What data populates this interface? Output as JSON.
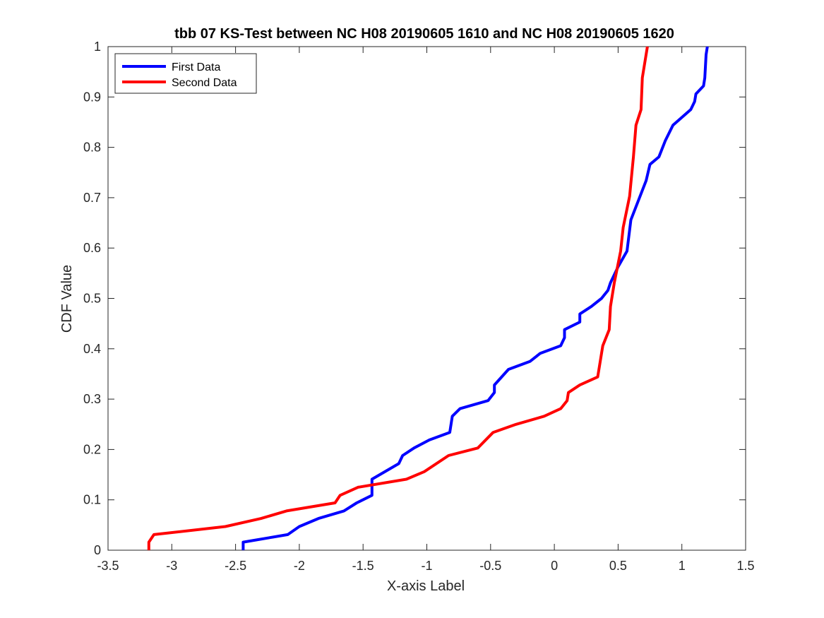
{
  "chart_data": {
    "type": "line",
    "title": "tbb 07 KS-Test between NC H08 20190605 1610 and NC H08 20190605 1620",
    "xlabel": "X-axis Label",
    "ylabel": "CDF Value",
    "xlim": [
      -3.5,
      1.5
    ],
    "ylim": [
      0,
      1
    ],
    "xticks": [
      -3.5,
      -3,
      -2.5,
      -2,
      -1.5,
      -1,
      -0.5,
      0,
      0.5,
      1,
      1.5
    ],
    "yticks": [
      0,
      0.1,
      0.2,
      0.3,
      0.4,
      0.5,
      0.6,
      0.7,
      0.8,
      0.9,
      1
    ],
    "xtick_labels": [
      "-3.5",
      "-3",
      "-2.5",
      "-2",
      "-1.5",
      "-1",
      "-0.5",
      "0",
      "0.5",
      "1",
      "1.5"
    ],
    "ytick_labels": [
      "0",
      "0.1",
      "0.2",
      "0.3",
      "0.4",
      "0.5",
      "0.6",
      "0.7",
      "0.8",
      "0.9",
      "1"
    ],
    "grid": false,
    "legend_position": "top-left",
    "series": [
      {
        "name": "First Data",
        "color": "#0000ff",
        "points": [
          [
            -2.44,
            0
          ],
          [
            -2.44,
            0.016
          ],
          [
            -2.09,
            0.031
          ],
          [
            -2.0,
            0.047
          ],
          [
            -1.85,
            0.063
          ],
          [
            -1.65,
            0.078
          ],
          [
            -1.55,
            0.094
          ],
          [
            -1.43,
            0.109
          ],
          [
            -1.43,
            0.141
          ],
          [
            -1.22,
            0.172
          ],
          [
            -1.19,
            0.188
          ],
          [
            -1.1,
            0.203
          ],
          [
            -0.98,
            0.219
          ],
          [
            -0.82,
            0.234
          ],
          [
            -0.8,
            0.266
          ],
          [
            -0.74,
            0.281
          ],
          [
            -0.52,
            0.297
          ],
          [
            -0.47,
            0.313
          ],
          [
            -0.47,
            0.328
          ],
          [
            -0.36,
            0.359
          ],
          [
            -0.19,
            0.375
          ],
          [
            -0.11,
            0.391
          ],
          [
            0.05,
            0.406
          ],
          [
            0.08,
            0.422
          ],
          [
            0.08,
            0.438
          ],
          [
            0.2,
            0.453
          ],
          [
            0.2,
            0.469
          ],
          [
            0.29,
            0.484
          ],
          [
            0.37,
            0.5
          ],
          [
            0.42,
            0.516
          ],
          [
            0.44,
            0.531
          ],
          [
            0.5,
            0.563
          ],
          [
            0.57,
            0.594
          ],
          [
            0.6,
            0.656
          ],
          [
            0.72,
            0.734
          ],
          [
            0.75,
            0.766
          ],
          [
            0.82,
            0.781
          ],
          [
            0.87,
            0.813
          ],
          [
            0.93,
            0.844
          ],
          [
            1.07,
            0.875
          ],
          [
            1.1,
            0.891
          ],
          [
            1.11,
            0.906
          ],
          [
            1.17,
            0.922
          ],
          [
            1.18,
            0.938
          ],
          [
            1.19,
            0.984
          ],
          [
            1.2,
            1.0
          ]
        ]
      },
      {
        "name": "Second Data",
        "color": "#ff0000",
        "points": [
          [
            -3.18,
            0
          ],
          [
            -3.18,
            0.016
          ],
          [
            -3.14,
            0.031
          ],
          [
            -2.58,
            0.047
          ],
          [
            -2.3,
            0.063
          ],
          [
            -2.1,
            0.078
          ],
          [
            -1.72,
            0.094
          ],
          [
            -1.68,
            0.109
          ],
          [
            -1.54,
            0.125
          ],
          [
            -1.16,
            0.141
          ],
          [
            -1.02,
            0.156
          ],
          [
            -0.83,
            0.188
          ],
          [
            -0.6,
            0.203
          ],
          [
            -0.48,
            0.234
          ],
          [
            -0.3,
            0.25
          ],
          [
            -0.08,
            0.266
          ],
          [
            0.05,
            0.281
          ],
          [
            0.1,
            0.297
          ],
          [
            0.11,
            0.313
          ],
          [
            0.2,
            0.328
          ],
          [
            0.34,
            0.344
          ],
          [
            0.38,
            0.406
          ],
          [
            0.43,
            0.438
          ],
          [
            0.44,
            0.484
          ],
          [
            0.47,
            0.531
          ],
          [
            0.52,
            0.594
          ],
          [
            0.54,
            0.641
          ],
          [
            0.59,
            0.703
          ],
          [
            0.62,
            0.781
          ],
          [
            0.64,
            0.844
          ],
          [
            0.68,
            0.875
          ],
          [
            0.69,
            0.938
          ],
          [
            0.71,
            0.969
          ],
          [
            0.73,
            1.0
          ]
        ]
      }
    ]
  }
}
